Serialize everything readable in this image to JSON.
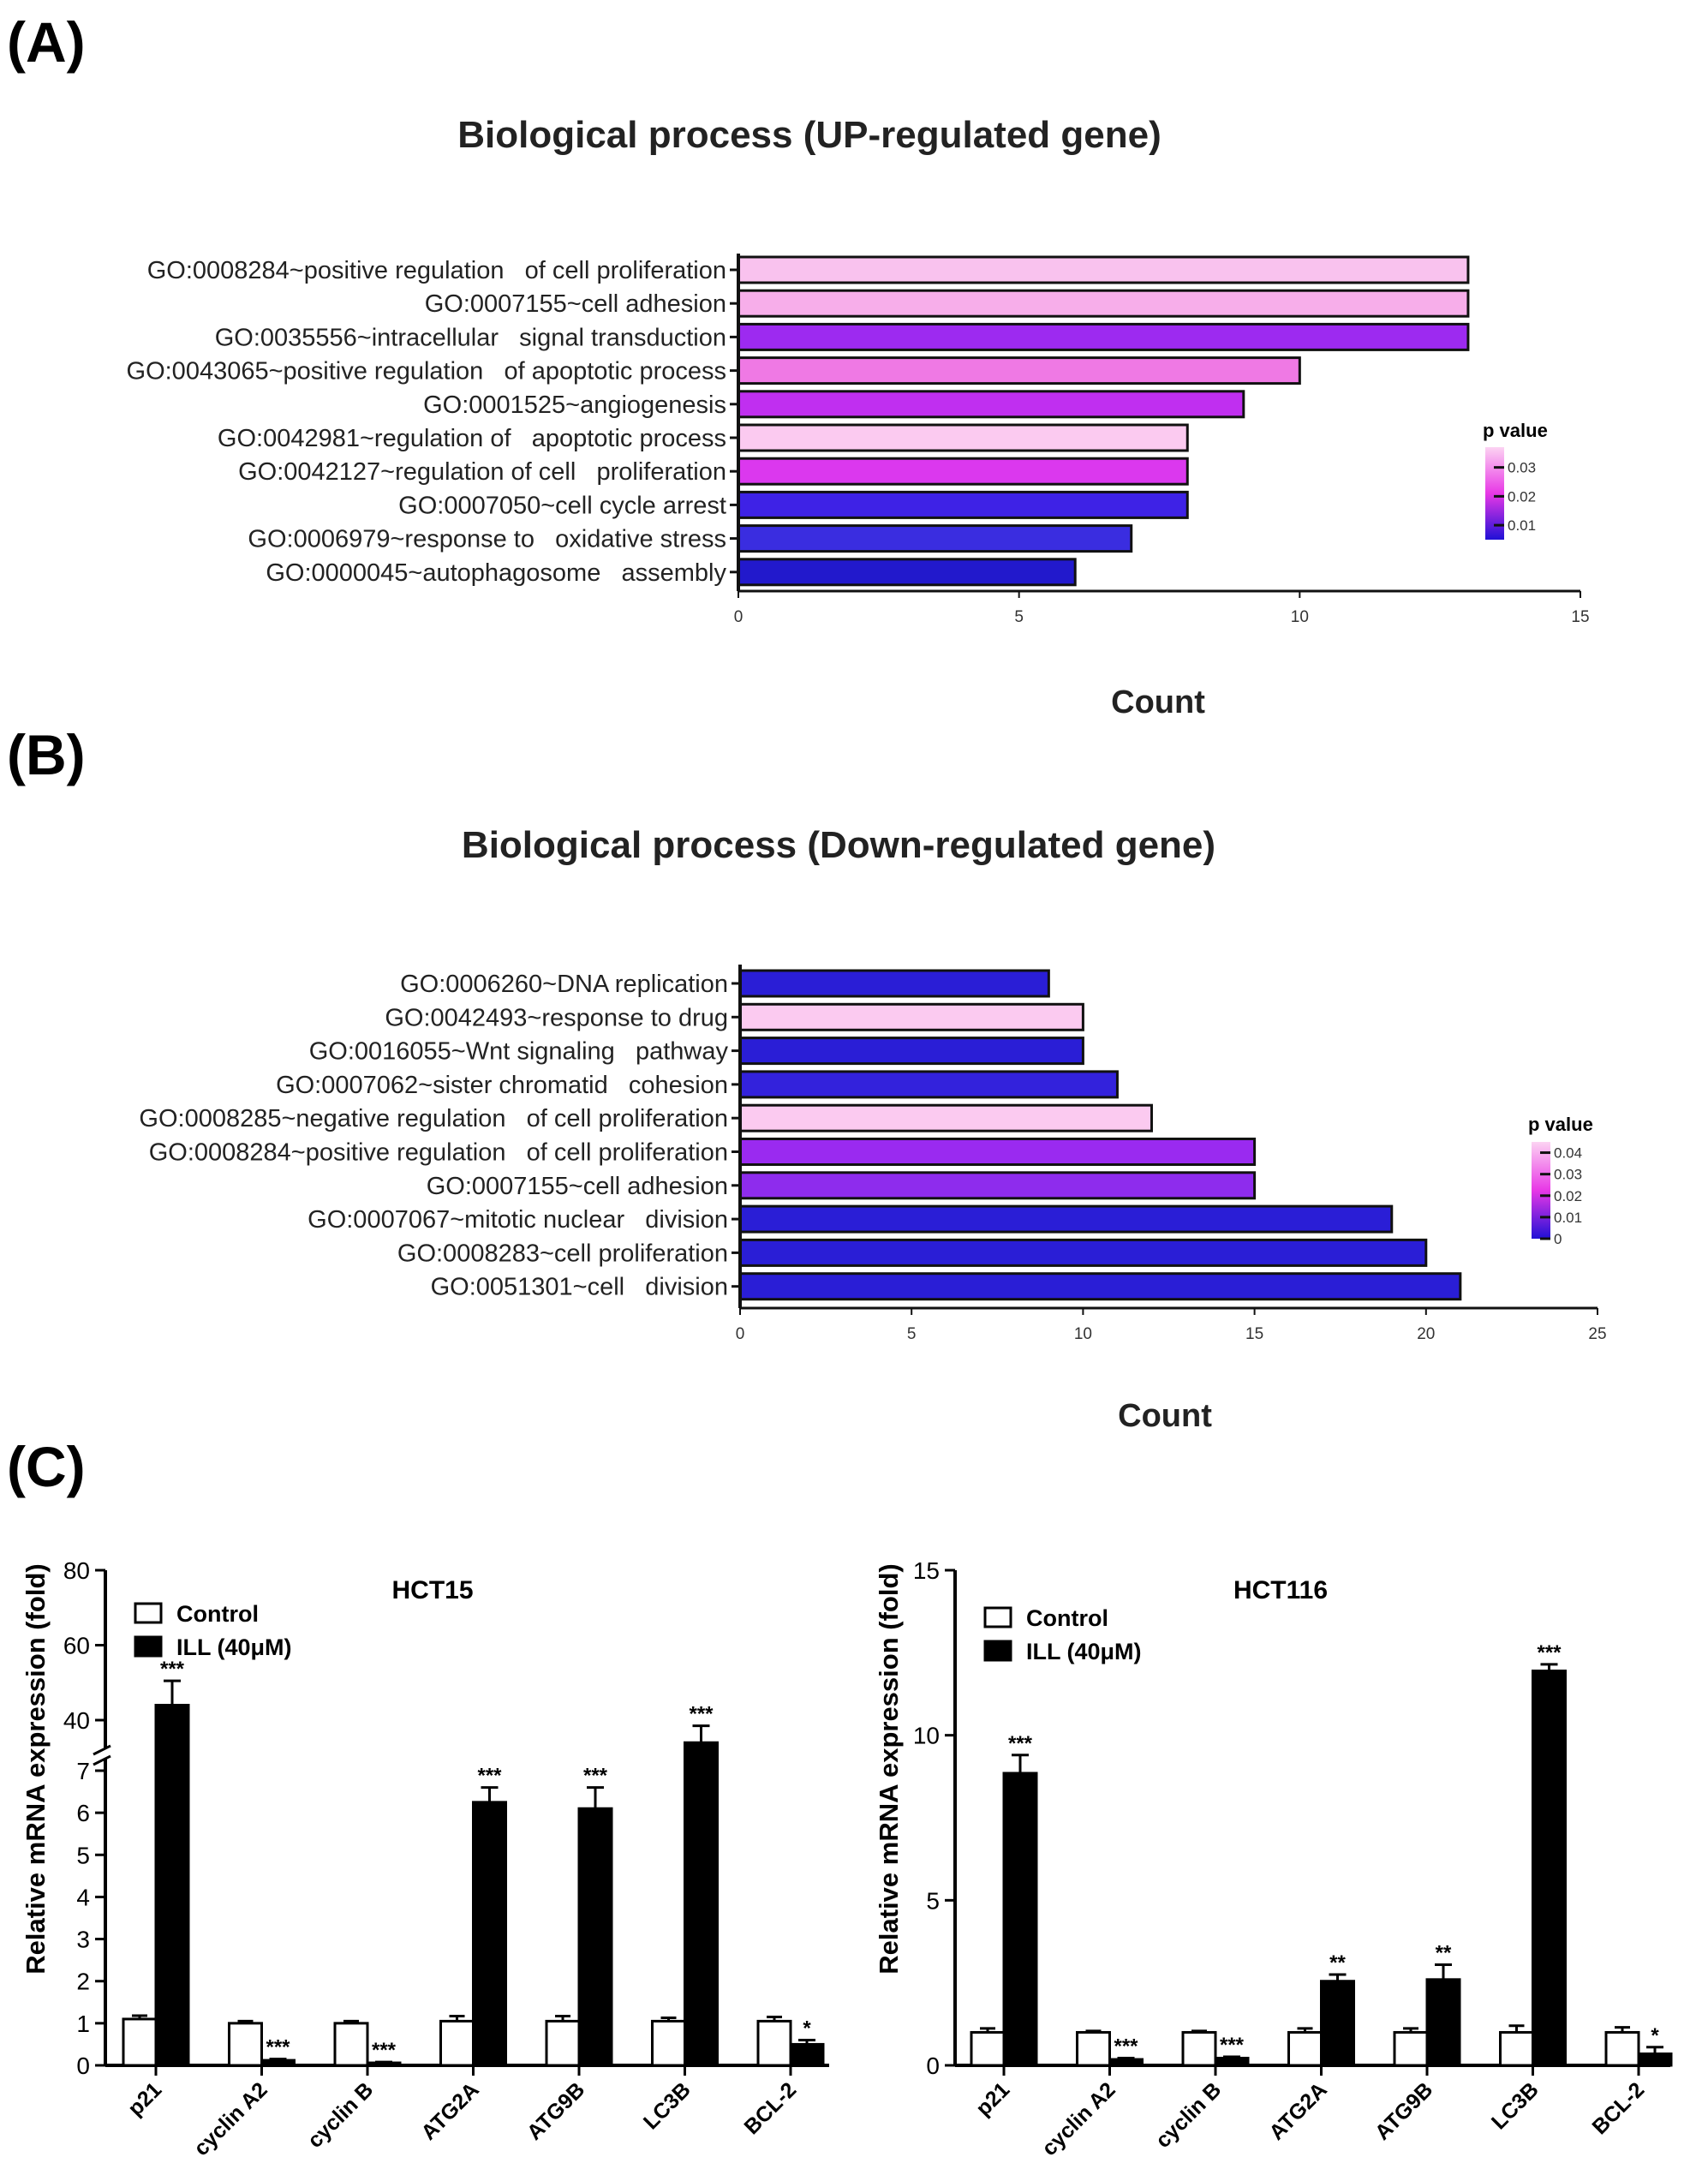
{
  "chart_data": [
    {
      "type": "bar",
      "orientation": "horizontal",
      "panel_label": "(A)",
      "title": "Biological process (UP-regulated gene)",
      "xlabel": "Count",
      "ylabel": "",
      "xlim": [
        0,
        15
      ],
      "xticks": [
        0,
        5,
        10,
        15
      ],
      "grid": false,
      "categories": [
        "GO:0008284~positive regulation   of cell proliferation",
        "GO:0007155~cell adhesion",
        "GO:0035556~intracellular   signal transduction",
        "GO:0043065~positive regulation   of apoptotic process",
        "GO:0001525~angiogenesis",
        "GO:0042981~regulation of   apoptotic process",
        "GO:0042127~regulation of cell   proliferation",
        "GO:0007050~cell cycle arrest",
        "GO:0006979~response to   oxidative stress",
        "GO:0000045~autophagosome   assembly"
      ],
      "values": [
        13,
        13,
        13,
        10,
        9,
        8,
        8,
        8,
        7,
        6
      ],
      "bar_colors": [
        "#f9c2ee",
        "#f7aeea",
        "#9d2af0",
        "#ef79e4",
        "#c02ff0",
        "#fbcaf0",
        "#db38ee",
        "#3e22e6",
        "#3a2de0",
        "#2219cc"
      ],
      "legend": {
        "title": "p value",
        "ticks": [
          "0.03",
          "0.02",
          "0.01"
        ],
        "tick_values": [
          0.03,
          0.02,
          0.01
        ],
        "range": [
          0.005,
          0.037
        ],
        "position": "right"
      }
    },
    {
      "type": "bar",
      "orientation": "horizontal",
      "panel_label": "(B)",
      "title": "Biological process (Down-regulated gene)",
      "xlabel": "Count",
      "ylabel": "",
      "xlim": [
        0,
        25
      ],
      "xticks": [
        0,
        5,
        10,
        15,
        20,
        25
      ],
      "grid": false,
      "categories": [
        "GO:0006260~DNA replication",
        "GO:0042493~response to drug",
        "GO:0016055~Wnt signaling   pathway",
        "GO:0007062~sister chromatid   cohesion",
        "GO:0008285~negative regulation   of cell proliferation",
        "GO:0008284~positive regulation   of cell proliferation",
        "GO:0007155~cell adhesion",
        "GO:0007067~mitotic nuclear   division",
        "GO:0008283~cell proliferation",
        "GO:0051301~cell   division"
      ],
      "values": [
        9,
        10,
        10,
        11,
        12,
        15,
        15,
        19,
        20,
        21
      ],
      "bar_colors": [
        "#2a1ed6",
        "#fbcaf0",
        "#2a1ed6",
        "#3322dc",
        "#fbcaf0",
        "#9a2af0",
        "#8e2ced",
        "#2a1ed6",
        "#2a1ed6",
        "#2a1ed6"
      ],
      "legend": {
        "title": "p value",
        "ticks": [
          "0.04",
          "0.03",
          "0.02",
          "0.01",
          "0"
        ],
        "tick_values": [
          0.04,
          0.03,
          0.02,
          0.01,
          0
        ],
        "range": [
          0,
          0.045
        ],
        "position": "right"
      }
    },
    {
      "type": "bar",
      "panel_label": "(C)",
      "title": "HCT15",
      "xlabel": "",
      "ylabel": "Relative mRNA expression (fold)",
      "ylim": [
        0,
        80
      ],
      "axis_break": {
        "lower": [
          0,
          7
        ],
        "upper": [
          30,
          80
        ]
      },
      "yticks": [
        0,
        1,
        2,
        3,
        4,
        5,
        6,
        7,
        40,
        60,
        80
      ],
      "categories": [
        "p21",
        "cyclin A2",
        "cyclin B",
        "ATG2A",
        "ATG9B",
        "LC3B",
        "BCL-2"
      ],
      "series": [
        {
          "name": "Control",
          "color": "#ffffff",
          "values": [
            1.1,
            1.0,
            1.0,
            1.05,
            1.05,
            1.05,
            1.05
          ],
          "errors": [
            0.08,
            0.05,
            0.05,
            0.12,
            0.12,
            0.08,
            0.1
          ]
        },
        {
          "name": "ILL (40μM)",
          "color": "#000000",
          "values": [
            44,
            0.12,
            0.06,
            6.25,
            6.1,
            34,
            0.5
          ],
          "errors": [
            6.5,
            0.03,
            0.02,
            0.35,
            0.5,
            4.5,
            0.1
          ]
        }
      ],
      "significance": [
        "***",
        "***",
        "***",
        "***",
        "***",
        "***",
        "*"
      ],
      "legend_position": "top-left"
    },
    {
      "type": "bar",
      "title": "HCT116",
      "xlabel": "",
      "ylabel": "Relative mRNA expression (fold)",
      "ylim": [
        0,
        15
      ],
      "yticks": [
        0,
        5,
        10,
        15
      ],
      "categories": [
        "p21",
        "cyclin A2",
        "cyclin B",
        "ATG2A",
        "ATG9B",
        "LC3B",
        "BCL-2"
      ],
      "series": [
        {
          "name": "Control",
          "color": "#ffffff",
          "values": [
            1.0,
            1.0,
            1.0,
            1.0,
            1.0,
            1.0,
            1.0
          ],
          "errors": [
            0.12,
            0.04,
            0.04,
            0.12,
            0.12,
            0.2,
            0.15
          ]
        },
        {
          "name": "ILL (40μM)",
          "color": "#000000",
          "values": [
            8.85,
            0.18,
            0.22,
            2.55,
            2.6,
            11.95,
            0.35
          ],
          "errors": [
            0.55,
            0.04,
            0.04,
            0.2,
            0.45,
            0.2,
            0.2
          ]
        }
      ],
      "significance": [
        "***",
        "***",
        "***",
        "**",
        "**",
        "***",
        "*"
      ],
      "legend_position": "top-left"
    }
  ]
}
